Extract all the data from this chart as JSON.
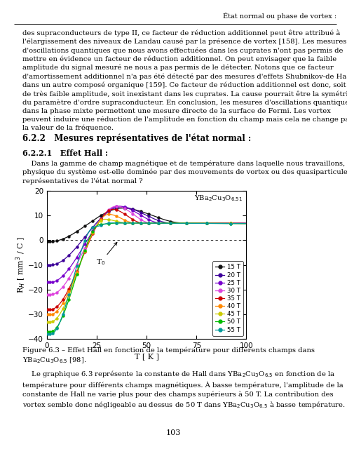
{
  "title": "YBa$_2$Cu$_3$O$_{6.51}$",
  "xlabel": "T [ K ]",
  "ylabel": "R$_H$ [ mm$^3$ / C ]",
  "xlim": [
    0,
    100
  ],
  "ylim": [
    -40,
    20
  ],
  "yticks": [
    -40,
    -30,
    -20,
    -10,
    0,
    10,
    20
  ],
  "xticks": [
    0,
    25,
    50,
    75,
    100
  ],
  "fields": [
    15,
    20,
    25,
    30,
    35,
    40,
    45,
    50,
    55
  ],
  "colors": {
    "15": "#111111",
    "20": "#3d0099",
    "25": "#7700cc",
    "30": "#dd44dd",
    "35": "#cc0000",
    "40": "#ff8800",
    "45": "#cccc00",
    "50": "#00bb00",
    "55": "#009999"
  },
  "header_text": "État normal ou phase de vortex :",
  "top_text": "des supraconducteurs de type II, ce facteur de réduction additionnel peut être attribué à l’élargissement des niveaux de Landau causé par la présence de vortex [158]. Les mesures d’oscillations quantiques que nous avons effectuées dans les cuprates n’ont pas permis de mettre en évidence un facteur de réduction additionnel. On peut envisager que la faible amplitude du signal mesuré ne nous a pas permis de le détecter. Notons que ce facteur d’amortissement additionnel n’a pas été détecté par des mesures d’effets Shubnikov-de Haas dans un autre composé organique [159]. Ce facteur de réduction additionnel est donc, soit de très faible amplitude, soit inexistant dans les cuprates. La cause pourrait être la symétrie du paramètre d’ordre supraconducteur. En conclusion, les mesures d’oscillations quantiques dans la phase mixte permettent une mesure directe de la surface de Fermi. Les vortex peuvent induire une réduction de l’amplitude en fonction du champ mais cela ne change pas la valeur de la fréquence.",
  "section_622": "6.2.2   Mesures représentatives de l’état normal :",
  "section_6221": "6.2.2.1   Effet Hall :",
  "para_text": "Dans la gamme de champ magnétique et de température dans laquelle nous travaillons, la physique du système est-elle dominée par des mouvements de vortex ou des quasiparticules représentatives de l’état normal ?",
  "caption": "Figure 6.3 – Effet Hall en fonction de la température pour différents champs dans YBa$_2$Cu$_3$O$_{6.5}$ [98].",
  "bottom_text": "Le graphique 6.3 représente la constante de Hall dans YBa$_2$Cu$_3$O$_{6.5}$ en fonction de la température pour différents champs magnétiques. À basse température, l’amplitude de la constante de Hall ne varie plus pour des champs supérieurs à 50 T. La contribution des vortex semble donc négligeable au dessus de 50 T dans YBa$_2$Cu$_3$O$_{6.5}$ à basse température.",
  "page_number": "103",
  "field_data": {
    "15": {
      "low_T": -0.5,
      "peak": 13.0,
      "peak_T": 38,
      "Tc_eff": 60
    },
    "20": {
      "low_T": -10,
      "peak": 13.5,
      "peak_T": 37,
      "Tc_eff": 54
    },
    "25": {
      "low_T": -17,
      "peak": 13.8,
      "peak_T": 36,
      "Tc_eff": 49
    },
    "30": {
      "low_T": -22,
      "peak": 13.8,
      "peak_T": 35,
      "Tc_eff": 44
    },
    "35": {
      "low_T": -28,
      "peak": 12.5,
      "peak_T": 33,
      "Tc_eff": 40
    },
    "40": {
      "low_T": -30,
      "peak": 10.5,
      "peak_T": 31,
      "Tc_eff": 36
    },
    "45": {
      "low_T": -33,
      "peak": 8.5,
      "peak_T": 29,
      "Tc_eff": 32
    },
    "50": {
      "low_T": -37,
      "peak": 6.5,
      "peak_T": 27,
      "Tc_eff": 28
    },
    "55": {
      "low_T": -38,
      "peak": 5.5,
      "peak_T": 24,
      "Tc_eff": 24
    }
  }
}
